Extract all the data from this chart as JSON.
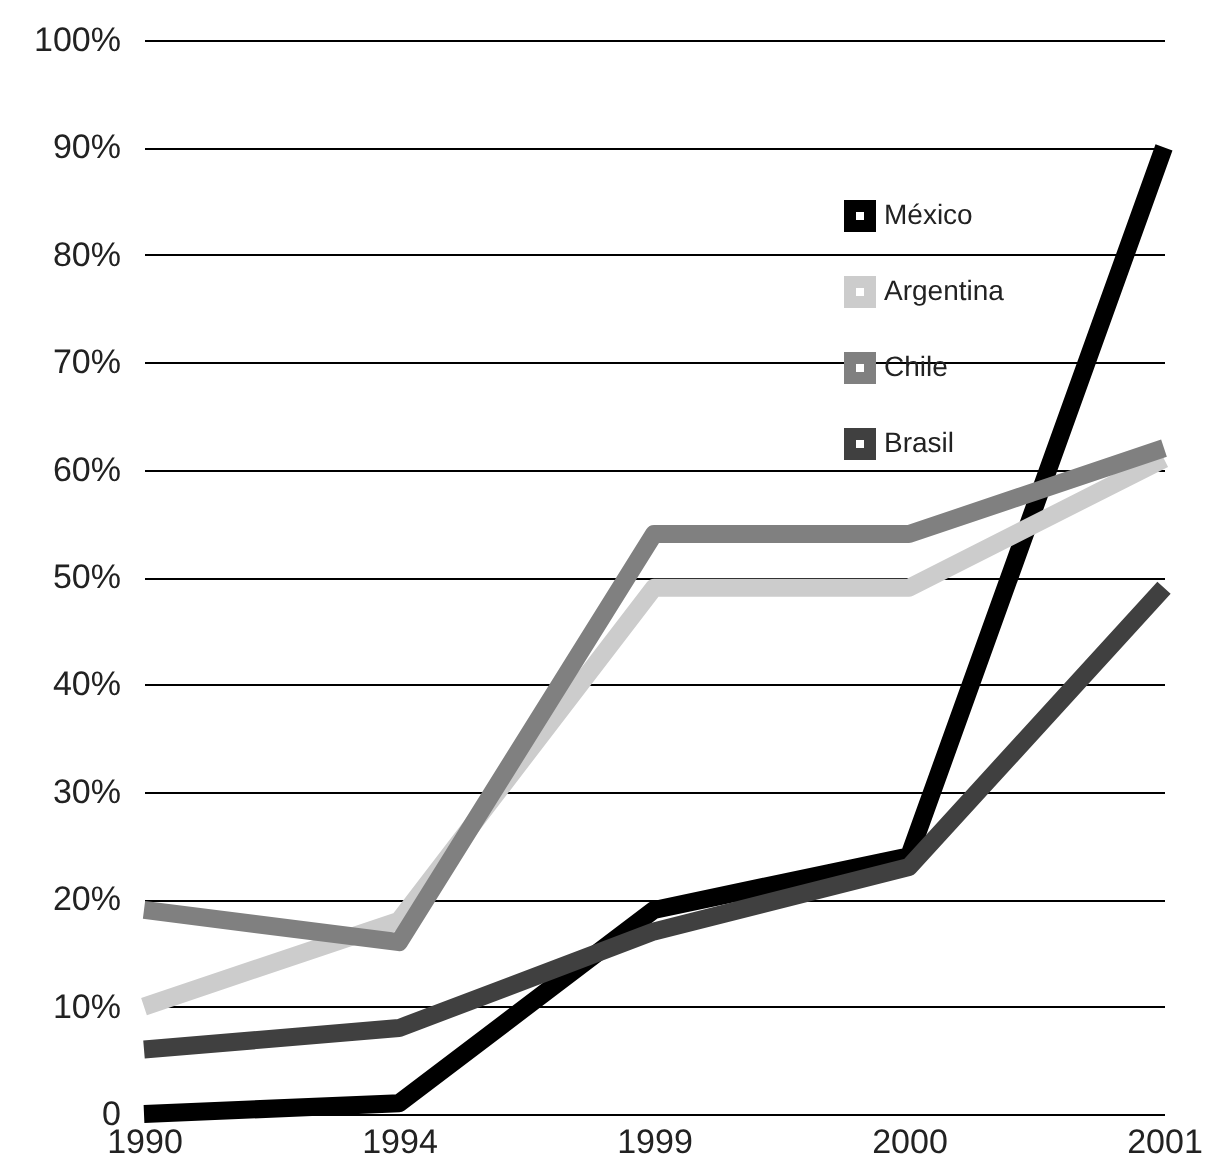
{
  "chart_data": {
    "type": "line",
    "categories": [
      "1990",
      "1994",
      "1999",
      "2000",
      "2001"
    ],
    "series": [
      {
        "name": "México",
        "color": "#000000",
        "values": [
          0,
          1,
          19,
          24,
          90
        ]
      },
      {
        "name": "Argentina",
        "color": "#cccccc",
        "values": [
          10,
          18,
          49,
          49,
          61
        ]
      },
      {
        "name": "Chile",
        "color": "#808080",
        "values": [
          19,
          16,
          54,
          54,
          62
        ]
      },
      {
        "name": "Brasil",
        "color": "#404040",
        "values": [
          6,
          8,
          17,
          23,
          49
        ]
      }
    ],
    "ylim": [
      0,
      100
    ],
    "yticks": [
      0,
      {
        "value": 10,
        "label": "10%"
      },
      {
        "value": 20,
        "label": "20%"
      },
      {
        "value": 30,
        "label": "30%"
      },
      {
        "value": 40,
        "label": "40%"
      },
      {
        "value": 50,
        "label": "50%"
      },
      {
        "value": 60,
        "label": "60%"
      },
      {
        "value": 70,
        "label": "70%"
      },
      {
        "value": 80,
        "label": "80%"
      },
      {
        "value": 90,
        "label": "90%"
      },
      {
        "value": 100,
        "label": "100%"
      }
    ],
    "grid": "y",
    "legend": "top right",
    "line_style": "solid",
    "marker": "none"
  }
}
